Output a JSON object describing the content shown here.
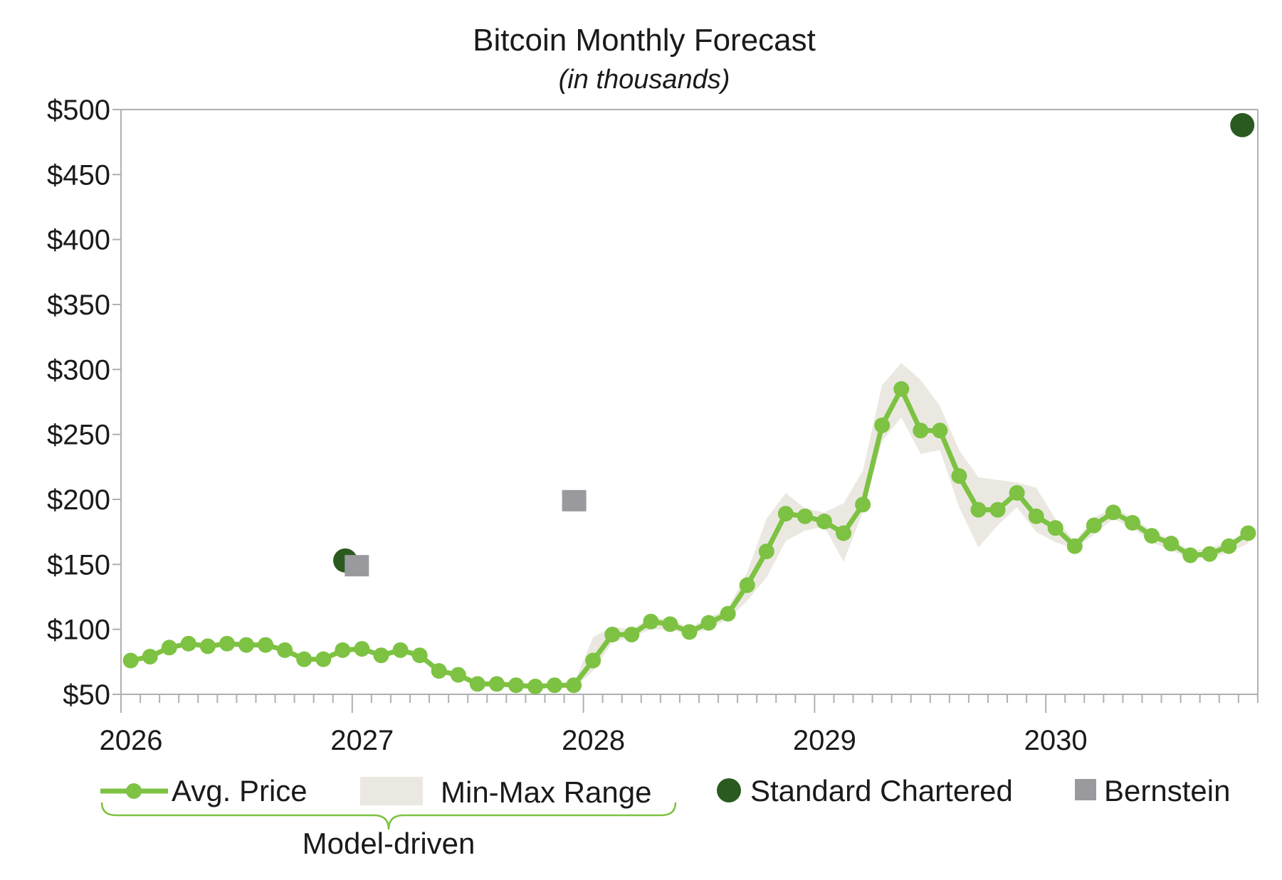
{
  "chart_data": {
    "type": "line",
    "title": "Bitcoin Monthly Forecast",
    "subtitle": "(in thousands)",
    "xlabel": "",
    "ylabel": "",
    "ylim": [
      50,
      500
    ],
    "y_ticks": [
      "$50",
      "$100",
      "$150",
      "$200",
      "$250",
      "$300",
      "$350",
      "$400",
      "$450",
      "$500"
    ],
    "y_tick_values": [
      50,
      100,
      150,
      200,
      250,
      300,
      350,
      400,
      450,
      500
    ],
    "x_tick_labels": [
      "2026",
      "2027",
      "2028",
      "2029",
      "2030"
    ],
    "x_tick_values": [
      2026,
      2027,
      2028,
      2029,
      2030
    ],
    "xlim": [
      2026,
      2030.917
    ],
    "x_start": 2026.042,
    "x_step": 0.08333,
    "grid": false,
    "colors": {
      "avg": "#7dc242",
      "range": "#ebe8e2",
      "standard_chartered": "#2a5a1f",
      "bernstein": "#9a9a9e",
      "axis": "#b0b0b0",
      "bracket": "#7dc242"
    },
    "series": [
      {
        "name": "Avg. Price",
        "values": [
          76,
          79,
          86,
          89,
          87,
          89,
          88,
          88,
          84,
          77,
          77,
          84,
          85,
          80,
          84,
          80,
          68,
          65,
          58,
          58,
          57,
          56,
          57,
          57,
          76,
          96,
          96,
          106,
          104,
          98,
          105,
          112,
          134,
          160,
          189,
          187,
          183,
          174,
          196,
          257,
          285,
          253,
          253,
          218,
          192,
          192,
          205,
          187,
          178,
          164,
          180,
          190,
          182,
          172,
          166,
          157,
          158,
          164,
          174
        ]
      },
      {
        "name": "Min-Max Range",
        "min": [
          76,
          79,
          86,
          89,
          87,
          89,
          88,
          88,
          84,
          77,
          77,
          84,
          85,
          80,
          84,
          80,
          68,
          65,
          58,
          58,
          57,
          56,
          57,
          55,
          68,
          90,
          94,
          100,
          100,
          96,
          100,
          108,
          122,
          140,
          168,
          176,
          179,
          152,
          190,
          245,
          263,
          235,
          238,
          194,
          163,
          180,
          194,
          175,
          167,
          162,
          173,
          185,
          178,
          167,
          161,
          154,
          155,
          159,
          166
        ],
        "max": [
          76,
          79,
          86,
          89,
          87,
          89,
          88,
          88,
          84,
          77,
          77,
          84,
          85,
          80,
          84,
          80,
          68,
          65,
          58,
          58,
          57,
          56,
          57,
          58,
          94,
          102,
          100,
          109,
          108,
          101,
          109,
          116,
          144,
          185,
          205,
          193,
          190,
          197,
          222,
          288,
          305,
          292,
          272,
          238,
          217,
          215,
          213,
          209,
          185,
          168,
          186,
          194,
          186,
          176,
          169,
          161,
          162,
          168,
          176
        ]
      },
      {
        "name": "Standard Chartered",
        "points": [
          {
            "x": 2026.97,
            "y": 153
          },
          {
            "x": 2030.85,
            "y": 488
          }
        ]
      },
      {
        "name": "Bernstein",
        "points": [
          {
            "x": 2027.02,
            "y": 149
          },
          {
            "x": 2027.96,
            "y": 199
          }
        ]
      }
    ],
    "legend": {
      "avg_label": "Avg. Price",
      "range_label": "Min-Max Range",
      "sc_label": "Standard Chartered",
      "bernstein_label": "Bernstein",
      "group_label": "Model-driven"
    }
  }
}
